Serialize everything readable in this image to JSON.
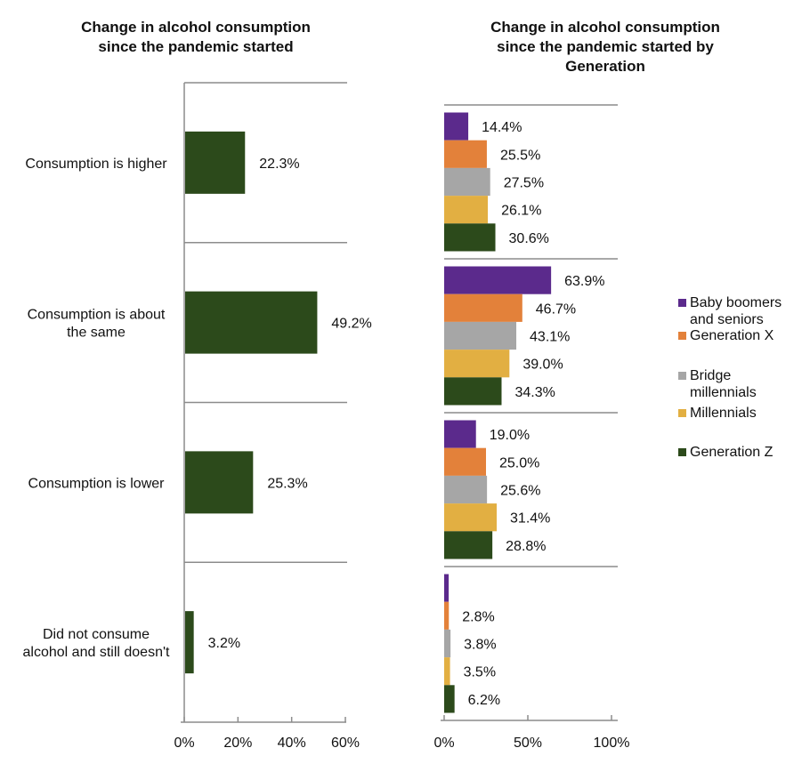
{
  "chart_data": [
    {
      "type": "bar",
      "orientation": "horizontal",
      "title": "Change in alcohol consumption\nsince the pandemic started",
      "categories": [
        "Consumption is higher",
        "Consumption is about the same",
        "Consumption is lower",
        "Did not consume alcohol and still doesn't"
      ],
      "category_labels": [
        [
          "Consumption is higher"
        ],
        [
          "Consumption is about",
          "the same"
        ],
        [
          "Consumption is lower"
        ],
        [
          "Did not consume",
          "alcohol and still doesn't"
        ]
      ],
      "values": [
        22.3,
        49.2,
        25.3,
        3.2
      ],
      "data_labels": [
        "22.3%",
        "49.2%",
        "25.3%",
        "3.2%"
      ],
      "color": "#2c4a1b",
      "xlim": [
        0,
        60
      ],
      "xticks": [
        "0%",
        "20%",
        "40%",
        "60%"
      ],
      "xlabel": "",
      "ylabel": "",
      "grid": true
    },
    {
      "type": "bar",
      "orientation": "horizontal",
      "title": "Change in alcohol consumption\nsince the pandemic started by\nGeneration",
      "categories": [
        "Consumption is higher",
        "Consumption is about the same",
        "Consumption is lower",
        "Did not consume alcohol and still doesn't"
      ],
      "series": [
        {
          "name": "Baby boomers and seniors",
          "legend_lines": [
            "Baby boomers",
            "and seniors"
          ],
          "color": "#5b2a8c",
          "values": [
            14.4,
            63.9,
            19.0,
            2.7
          ],
          "data_labels": [
            "14.4%",
            "63.9%",
            "19.0%",
            ""
          ]
        },
        {
          "name": "Generation X",
          "legend_lines": [
            "Generation X"
          ],
          "color": "#e3813a",
          "values": [
            25.5,
            46.7,
            25.0,
            2.8
          ],
          "data_labels": [
            "25.5%",
            "46.7%",
            "25.0%",
            "2.8%"
          ]
        },
        {
          "name": "Bridge millennials",
          "legend_lines": [
            "Bridge",
            "millennials"
          ],
          "color": "#a6a6a6",
          "values": [
            27.5,
            43.1,
            25.6,
            3.8
          ],
          "data_labels": [
            "27.5%",
            "43.1%",
            "25.6%",
            "3.8%"
          ]
        },
        {
          "name": "Millennials",
          "legend_lines": [
            "Millennials"
          ],
          "color": "#e2af42",
          "values": [
            26.1,
            39.0,
            31.4,
            3.5
          ],
          "data_labels": [
            "26.1%",
            "39.0%",
            "31.4%",
            "3.5%"
          ]
        },
        {
          "name": "Generation Z",
          "legend_lines": [
            "Generation Z"
          ],
          "color": "#2c4a1b",
          "values": [
            30.6,
            34.3,
            28.8,
            6.2
          ],
          "data_labels": [
            "30.6%",
            "34.3%",
            "28.8%",
            "6.2%"
          ]
        }
      ],
      "xlim": [
        0,
        100
      ],
      "xticks": [
        "0%",
        "50%",
        "100%"
      ],
      "legend": "right",
      "grid": true
    }
  ]
}
